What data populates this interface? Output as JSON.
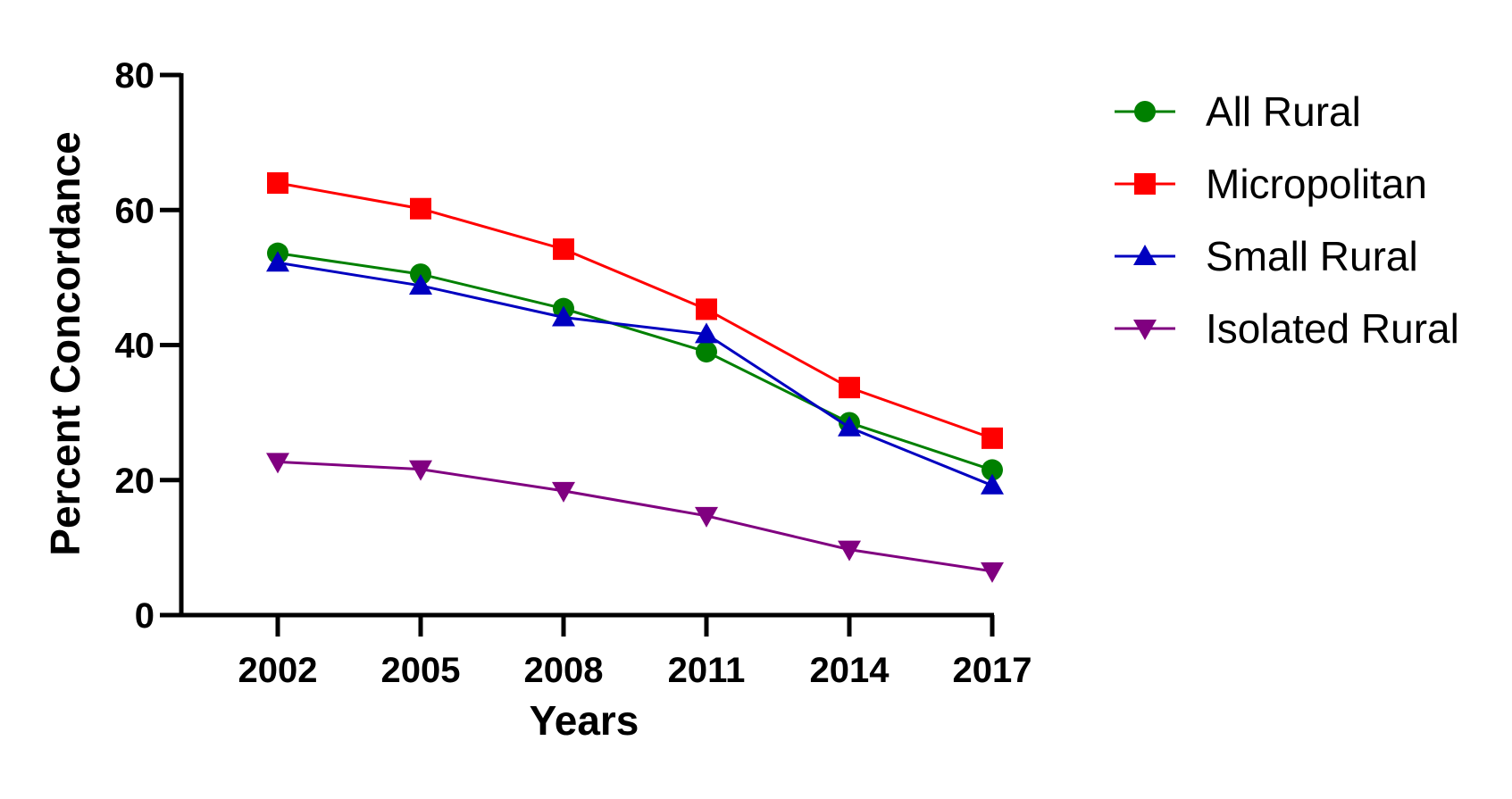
{
  "chart_data": {
    "type": "line",
    "title": "",
    "xlabel": "Years",
    "ylabel": "Percent Concordance",
    "x": [
      2002,
      2005,
      2008,
      2011,
      2014,
      2017
    ],
    "x_tick_labels": [
      "2002",
      "2005",
      "2008",
      "2011",
      "2014",
      "2017"
    ],
    "ylim": [
      0,
      80
    ],
    "y_ticks": [
      0,
      20,
      40,
      60,
      80
    ],
    "y_tick_labels": [
      "0",
      "20",
      "40",
      "60",
      "80"
    ],
    "grid": false,
    "legend_position": "right",
    "series": [
      {
        "name": "All Rural",
        "color": "#008000",
        "marker": "circle",
        "values": [
          53.6,
          50.5,
          45.4,
          39.0,
          28.5,
          21.5
        ]
      },
      {
        "name": "Micropolitan",
        "color": "#ff0000",
        "marker": "square",
        "values": [
          64.0,
          60.2,
          54.2,
          45.3,
          33.7,
          26.2
        ]
      },
      {
        "name": "Small Rural",
        "color": "#0000c0",
        "marker": "triangle-up",
        "values": [
          52.2,
          48.8,
          44.1,
          41.6,
          27.8,
          19.2
        ]
      },
      {
        "name": "Isolated Rural",
        "color": "#800080",
        "marker": "triangle-down",
        "values": [
          22.7,
          21.6,
          18.4,
          14.7,
          9.7,
          6.5
        ]
      }
    ]
  }
}
